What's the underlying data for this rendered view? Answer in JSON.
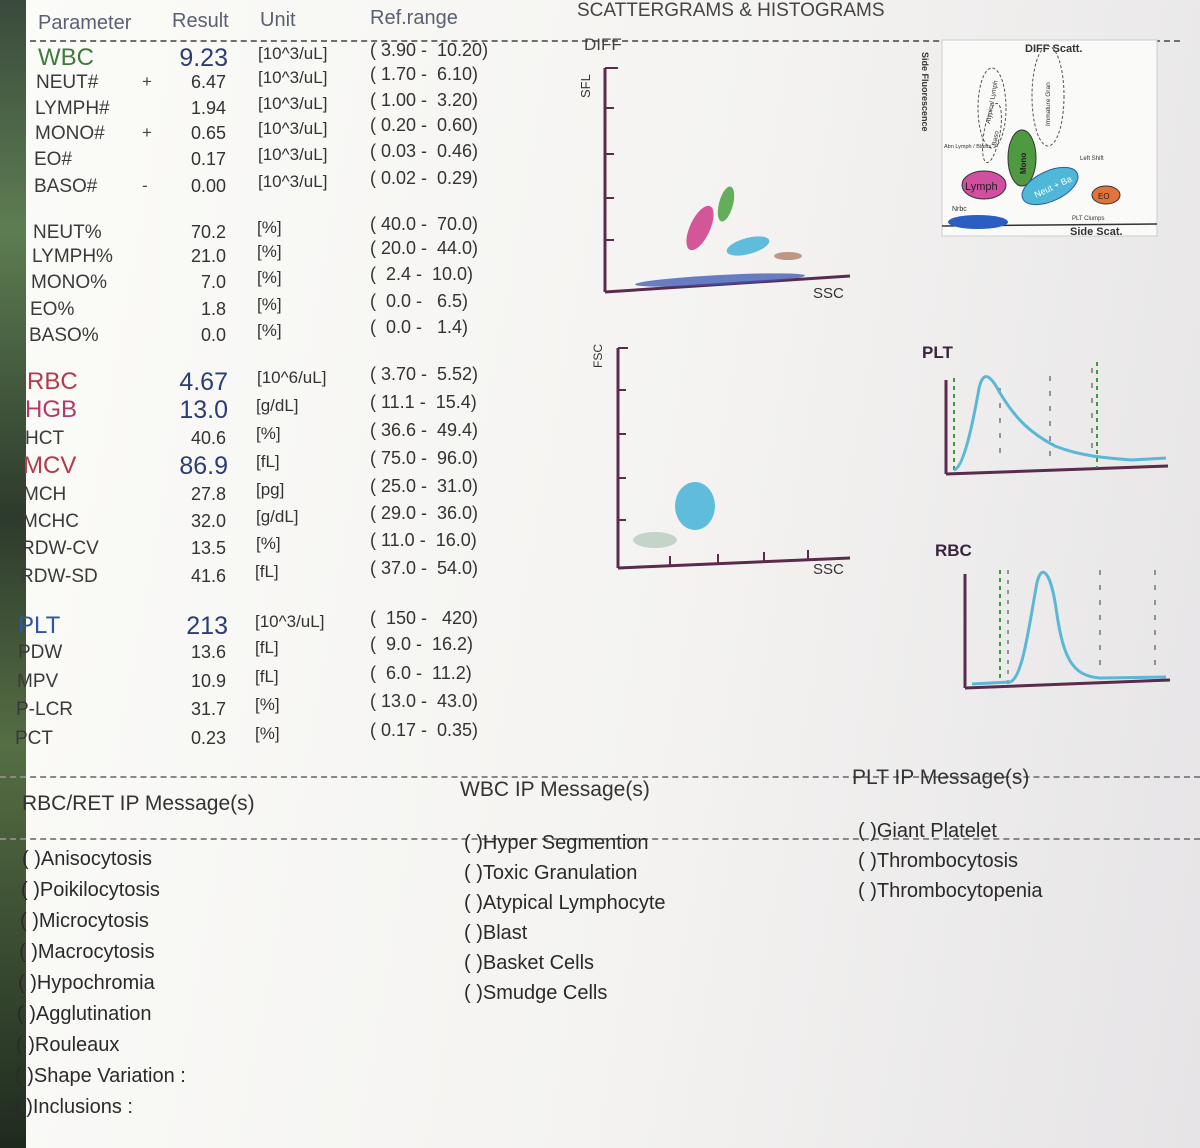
{
  "header": {
    "parameter": "Parameter",
    "result": "Result",
    "unit": "Unit",
    "ref": "Ref.range",
    "scatter": "SCATTERGRAMS & HISTOGRAMS"
  },
  "rows": [
    {
      "name": "WBC",
      "flag": "",
      "result": "9.23",
      "unit": "[10^3/uL]",
      "ref": "( 3.90 -  10.20)",
      "color": "#3f7a3c",
      "big": true
    },
    {
      "name": "NEUT#",
      "flag": "+",
      "result": "6.47",
      "unit": "[10^3/uL]",
      "ref": "( 1.70 -  6.10)",
      "color": "#3a3a3a",
      "big": false
    },
    {
      "name": "LYMPH#",
      "flag": "",
      "result": "1.94",
      "unit": "[10^3/uL]",
      "ref": "( 1.00 -  3.20)",
      "color": "#3a3a3a",
      "big": false
    },
    {
      "name": "MONO#",
      "flag": "+",
      "result": "0.65",
      "unit": "[10^3/uL]",
      "ref": "( 0.20 -  0.60)",
      "color": "#3a3a3a",
      "big": false
    },
    {
      "name": "EO#",
      "flag": "",
      "result": "0.17",
      "unit": "[10^3/uL]",
      "ref": "( 0.03 -  0.46)",
      "color": "#3a3a3a",
      "big": false
    },
    {
      "name": "BASO#",
      "flag": "-",
      "result": "0.00",
      "unit": "[10^3/uL]",
      "ref": "( 0.02 -  0.29)",
      "color": "#3a3a3a",
      "big": false
    },
    {
      "name": "NEUT%",
      "flag": "",
      "result": "70.2",
      "unit": "[%]",
      "ref": "( 40.0 -  70.0)",
      "color": "#3a3a3a",
      "big": false
    },
    {
      "name": "LYMPH%",
      "flag": "",
      "result": "21.0",
      "unit": "[%]",
      "ref": "( 20.0 -  44.0)",
      "color": "#3a3a3a",
      "big": false
    },
    {
      "name": "MONO%",
      "flag": "",
      "result": "7.0",
      "unit": "[%]",
      "ref": "(  2.4 -  10.0)",
      "color": "#3a3a3a",
      "big": false
    },
    {
      "name": "EO%",
      "flag": "",
      "result": "1.8",
      "unit": "[%]",
      "ref": "(  0.0 -   6.5)",
      "color": "#3a3a3a",
      "big": false
    },
    {
      "name": "BASO%",
      "flag": "",
      "result": "0.0",
      "unit": "[%]",
      "ref": "(  0.0 -   1.4)",
      "color": "#3a3a3a",
      "big": false
    },
    {
      "name": "RBC",
      "flag": "",
      "result": "4.67",
      "unit": "[10^6/uL]",
      "ref": "( 3.70 -  5.52)",
      "color": "#b23a4a",
      "big": true
    },
    {
      "name": "HGB",
      "flag": "",
      "result": "13.0",
      "unit": "[g/dL]",
      "ref": "( 11.1 -  15.4)",
      "color": "#b23a6a",
      "big": true
    },
    {
      "name": "HCT",
      "flag": "",
      "result": "40.6",
      "unit": "[%]",
      "ref": "( 36.6 -  49.4)",
      "color": "#3a3a3a",
      "big": false
    },
    {
      "name": "MCV",
      "flag": "",
      "result": "86.9",
      "unit": "[fL]",
      "ref": "( 75.0 -  96.0)",
      "color": "#b23a4a",
      "big": true
    },
    {
      "name": "MCH",
      "flag": "",
      "result": "27.8",
      "unit": "[pg]",
      "ref": "( 25.0 -  31.0)",
      "color": "#3a3a3a",
      "big": false
    },
    {
      "name": "MCHC",
      "flag": "",
      "result": "32.0",
      "unit": "[g/dL]",
      "ref": "( 29.0 -  36.0)",
      "color": "#3a3a3a",
      "big": false
    },
    {
      "name": "RDW-CV",
      "flag": "",
      "result": "13.5",
      "unit": "[%]",
      "ref": "( 11.0 -  16.0)",
      "color": "#3a3a3a",
      "big": false
    },
    {
      "name": "RDW-SD",
      "flag": "",
      "result": "41.6",
      "unit": "[fL]",
      "ref": "( 37.0 -  54.0)",
      "color": "#3a3a3a",
      "big": false
    },
    {
      "name": "PLT",
      "flag": "",
      "result": "213",
      "unit": "[10^3/uL]",
      "ref": "(  150 -   420)",
      "color": "#2f56a0",
      "big": true
    },
    {
      "name": "PDW",
      "flag": "",
      "result": "13.6",
      "unit": "[fL]",
      "ref": "(  9.0 -  16.2)",
      "color": "#3a3a3a",
      "big": false
    },
    {
      "name": "MPV",
      "flag": "",
      "result": "10.9",
      "unit": "[fL]",
      "ref": "(  6.0 -  11.2)",
      "color": "#3a3a3a",
      "big": false
    },
    {
      "name": "P-LCR",
      "flag": "",
      "result": "31.7",
      "unit": "[%]",
      "ref": "( 13.0 -  43.0)",
      "color": "#3a3a3a",
      "big": false
    },
    {
      "name": "PCT",
      "flag": "",
      "result": "0.23",
      "unit": "[%]",
      "ref": "( 0.17 -  0.35)",
      "color": "#3a3a3a",
      "big": false
    }
  ],
  "graphs": {
    "diff_label": "DIFF",
    "sfl": "SFL",
    "ssc": "SSC",
    "fsc": "FSC",
    "ssc2": "SSC",
    "plt_label": "PLT",
    "rbc_label": "RBC",
    "legend": {
      "title": "DIFF Scatt.",
      "y_axis": "Side Fluorescence",
      "x_axis": "Side Scat.",
      "atypical": "Atypical Lymph",
      "immature": "Immature Gran",
      "abn": "Abn Lymph / Blasts",
      "baso": "Baso",
      "mono": "Mono",
      "left_shift": "Left Shift",
      "lymph": "Lymph",
      "neut": "Neut + Ba",
      "eo": "EO",
      "nrbc": "Nrbc",
      "plt_clumps": "PLT Clumps"
    }
  },
  "messages": {
    "rbc_title": "RBC/RET IP Message(s)",
    "wbc_title": "WBC IP Message(s)",
    "plt_title": "PLT IP Message(s)",
    "rbc": [
      "( )Anisocytosis",
      "( )Poikilocytosis",
      "( )Microcytosis",
      "( )Macrocytosis",
      "( )Hypochromia",
      "( )Agglutination",
      "( )Rouleaux",
      "( )Shape Variation :",
      "( )Inclusions :"
    ],
    "wbc": [
      "( )Hyper Segmention",
      "( )Toxic Granulation",
      "( )Atypical Lymphocyte",
      "( )Blast",
      "( )Basket Cells",
      "( )Smudge Cells"
    ],
    "plt": [
      "( )Giant Platelet",
      "( )Thrombocytosis",
      "( )Thrombocytopenia"
    ]
  }
}
